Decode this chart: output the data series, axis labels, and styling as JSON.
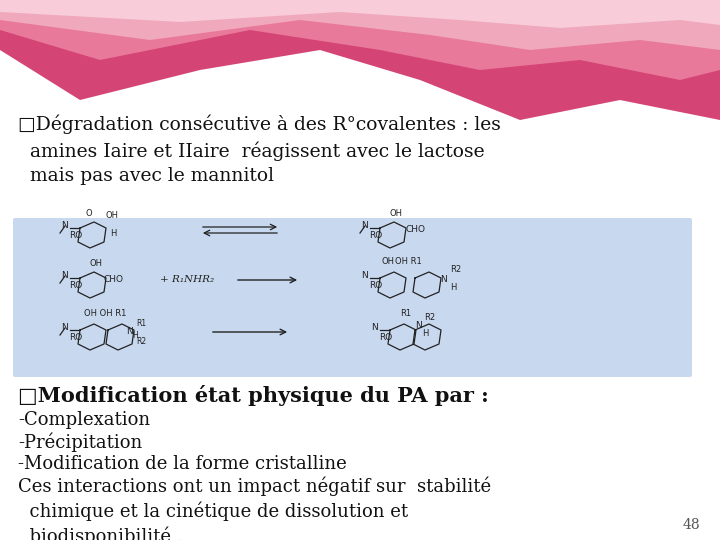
{
  "background_color": "#ffffff",
  "slide_number": "48",
  "title_bullet": "□",
  "title_text": "Dégradation consécutive à des R°covalentes : les\n  amines Iaire et IIaire  réagissent avec le lactose\n  mais pas avec le mannitol",
  "image_box_color": "#c8d8ef",
  "bullet2_text": "□Modification état physique du PA par :",
  "lines": [
    "-Complexation",
    "-Précipitation",
    "-Modification de la forme cristalline",
    "Ces interactions ont un impact négatif sur  stabilité\n  chimique et la cinétique de dissolution et\n  biodisponibilité ."
  ],
  "font_family": "serif",
  "title_fontsize": 13.5,
  "body_fontsize": 13,
  "bold_fontsize": 15,
  "slide_num_fontsize": 10,
  "wave1_color": "#d44475",
  "wave2_color": "#e8799a",
  "wave3_color": "#f0a8bc",
  "wave4_color": "#f8ccd8"
}
